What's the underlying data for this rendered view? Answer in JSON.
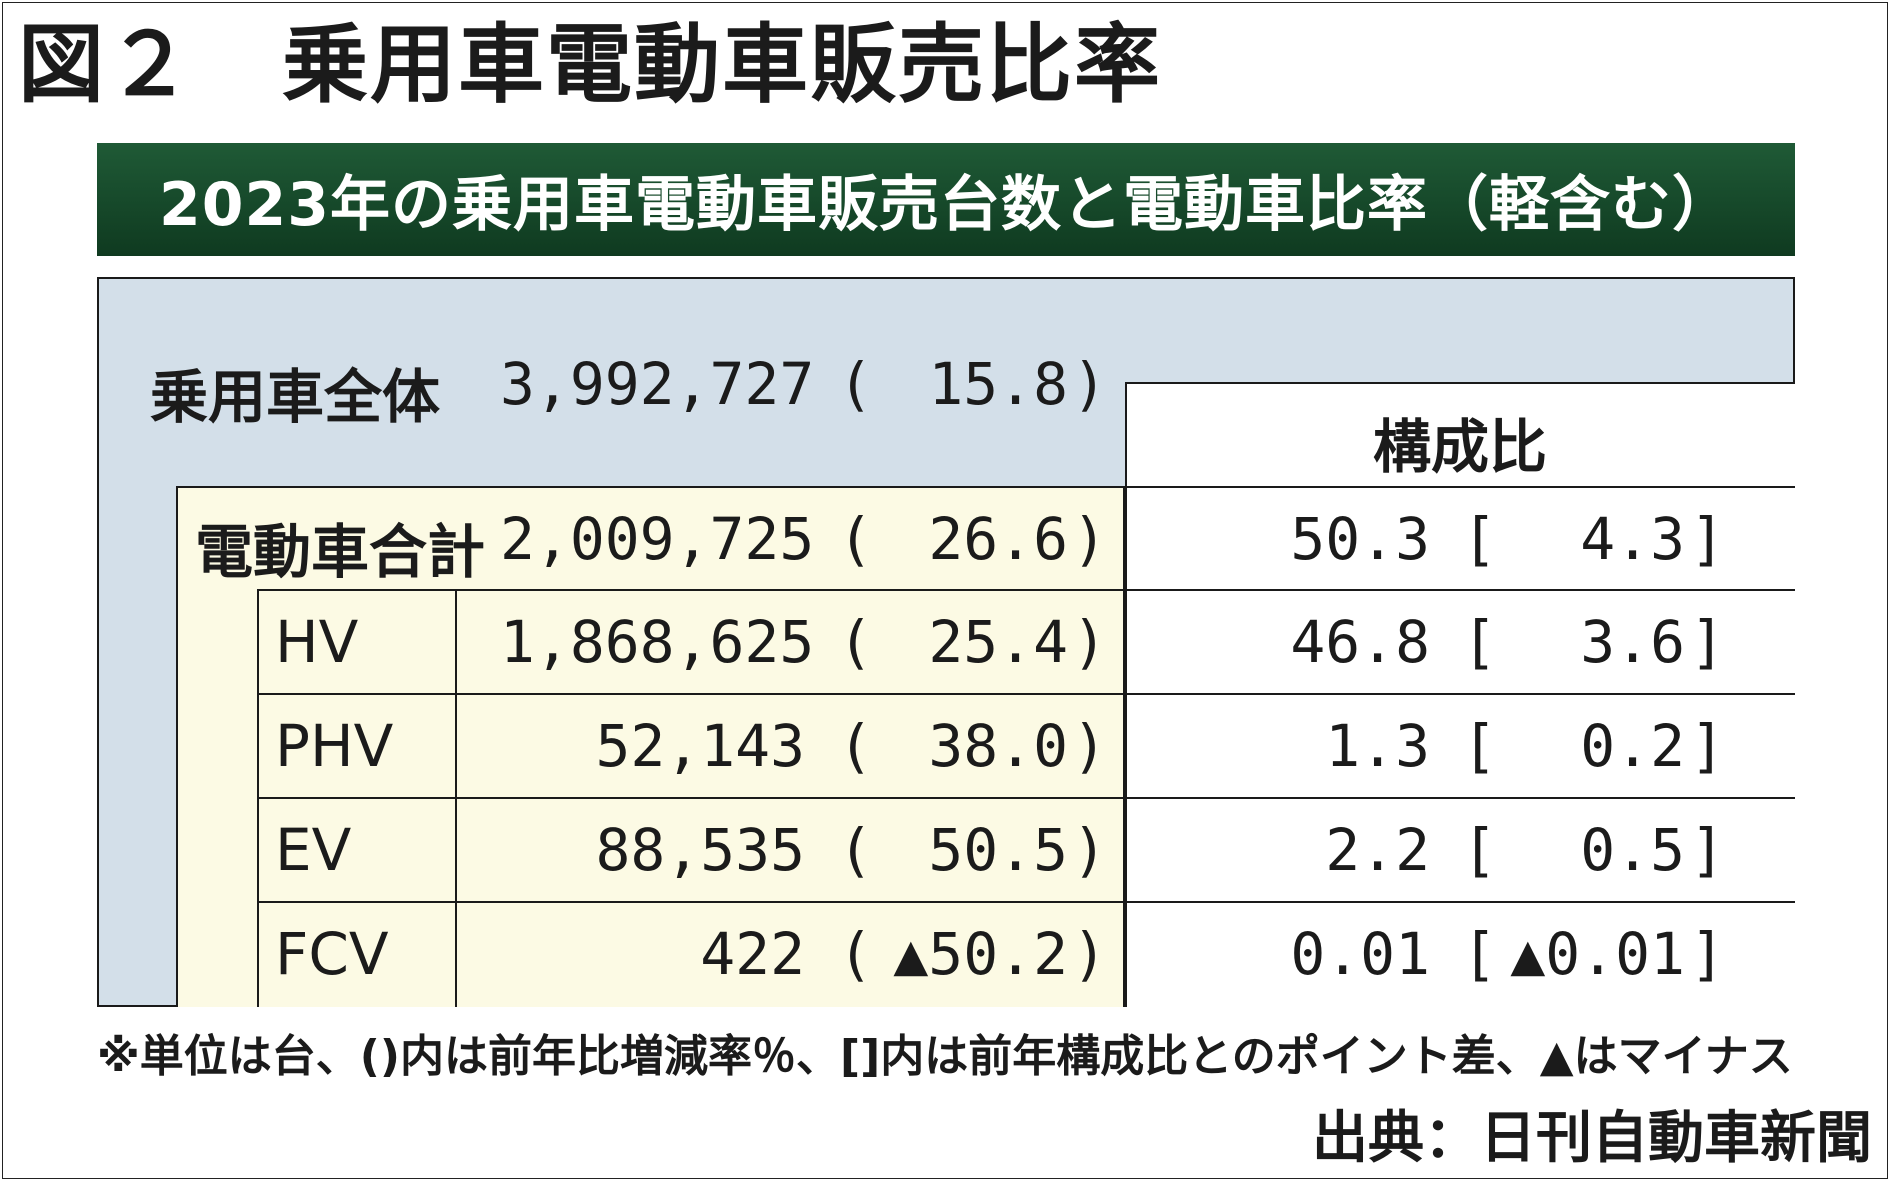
{
  "figure_title": "図２　乗用車電動車販売比率",
  "banner_title": "2023年の乗用車電動車販売台数と電動車比率（軽含む）",
  "share_header": "構成比",
  "total_row": {
    "label": "乗用車全体",
    "units": "3,992,727",
    "yoy": "15.8"
  },
  "ev_total_row": {
    "label": "電動車合計",
    "units": "2,009,725",
    "yoy": "26.6",
    "share": "50.3",
    "share_diff": "4.3"
  },
  "rows": [
    {
      "label": "HV",
      "units": "1,868,625",
      "yoy": "25.4",
      "share": "46.8",
      "share_diff": "3.6"
    },
    {
      "label": "PHV",
      "units": "52,143",
      "yoy": "38.0",
      "share": "1.3",
      "share_diff": "0.2"
    },
    {
      "label": "EV",
      "units": "88,535",
      "yoy": "50.5",
      "share": "2.2",
      "share_diff": "0.5"
    },
    {
      "label": "FCV",
      "units": "422",
      "yoy": "▲50.2",
      "share": "0.01",
      "share_diff": "▲0.01"
    }
  ],
  "footnote": "※単位は台、()内は前年比増減率％、[]内は前年構成比とのポイント差、▲はマイナス",
  "source": "出典：日刊自動車新聞",
  "colors": {
    "banner": "#174a2b",
    "table_bg": "#d3dfe9",
    "sub_bg": "#fcfae4"
  },
  "chart_data": {
    "type": "table",
    "title": "2023年の乗用車電動車販売台数と電動車比率（軽含む）",
    "columns": [
      "販売台数",
      "前年比増減率％",
      "構成比",
      "前年構成比とのポイント差"
    ],
    "rows": [
      {
        "category": "乗用車全体",
        "units": 3992727,
        "yoy_pct": 15.8
      },
      {
        "category": "電動車合計",
        "units": 2009725,
        "yoy_pct": 26.6,
        "share_pct": 50.3,
        "share_diff_pt": 4.3
      },
      {
        "category": "HV",
        "units": 1868625,
        "yoy_pct": 25.4,
        "share_pct": 46.8,
        "share_diff_pt": 3.6
      },
      {
        "category": "PHV",
        "units": 52143,
        "yoy_pct": 38.0,
        "share_pct": 1.3,
        "share_diff_pt": 0.2
      },
      {
        "category": "EV",
        "units": 88535,
        "yoy_pct": 50.5,
        "share_pct": 2.2,
        "share_diff_pt": 0.5
      },
      {
        "category": "FCV",
        "units": 422,
        "yoy_pct": -50.2,
        "share_pct": 0.01,
        "share_diff_pt": -0.01
      }
    ]
  }
}
